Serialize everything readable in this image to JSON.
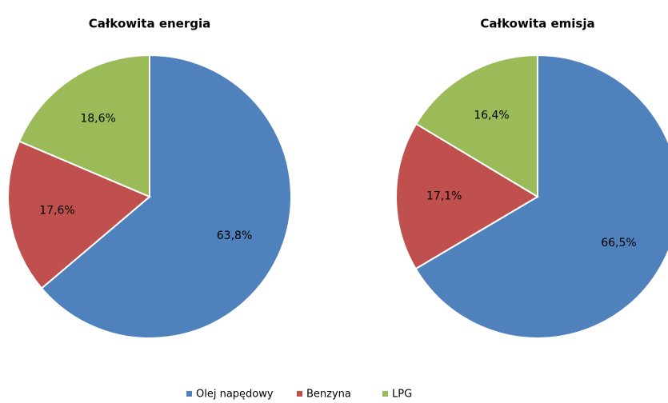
{
  "chart_data": [
    {
      "type": "pie",
      "title": "Całkowita energia",
      "values": [
        63.8,
        17.6,
        18.6
      ],
      "value_labels": [
        "63,8%",
        "17,6%",
        "18,6%"
      ]
    },
    {
      "type": "pie",
      "title": "Całkowita emisja",
      "values": [
        66.5,
        17.1,
        16.4
      ],
      "value_labels": [
        "66,5%",
        "17,1%",
        "16,4%"
      ]
    }
  ],
  "legend": {
    "categories": [
      "Olej napędowy",
      "Benzyna",
      "LPG"
    ],
    "colors": [
      "#4f81bd",
      "#c0504d",
      "#9bbb59"
    ]
  }
}
